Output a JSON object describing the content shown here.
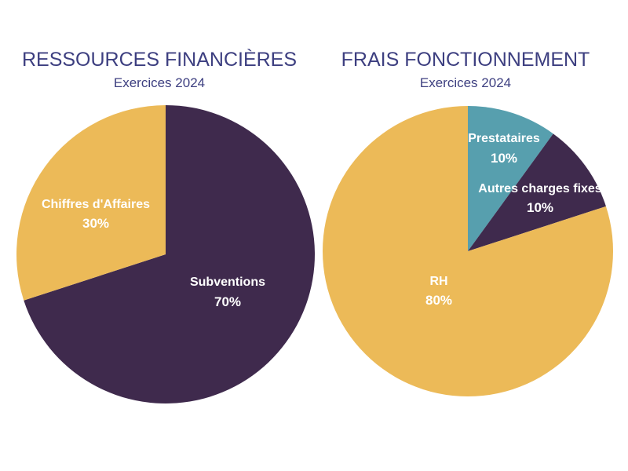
{
  "chart_data": [
    {
      "type": "pie",
      "title": "RESSOURCES FINANCIÈRES",
      "subtitle": "Exercices 2024",
      "slices": [
        {
          "label": "Subventions",
          "value": 70,
          "display": "70%",
          "color": "#3f2a4d",
          "text_color": "#ffffff"
        },
        {
          "label": "Chiffres d'Affaires",
          "value": 30,
          "display": "30%",
          "color": "#ecba58",
          "text_color": "#ffffff"
        }
      ]
    },
    {
      "type": "pie",
      "title": "FRAIS FONCTIONNEMENT",
      "subtitle": "Exercices 2024",
      "slices": [
        {
          "label": "Prestataires",
          "value": 10,
          "display": "10%",
          "color": "#579fae",
          "text_color": "#ffffff"
        },
        {
          "label": "Autres charges fixes",
          "value": 10,
          "display": "10%",
          "color": "#3f2a4d",
          "text_color": "#ffffff"
        },
        {
          "label": "RH",
          "value": 80,
          "display": "80%",
          "color": "#ecba58",
          "text_color": "#ffffff"
        }
      ]
    }
  ],
  "colors": {
    "title": "#3d3f80",
    "subtitle": "#3d3f80"
  }
}
